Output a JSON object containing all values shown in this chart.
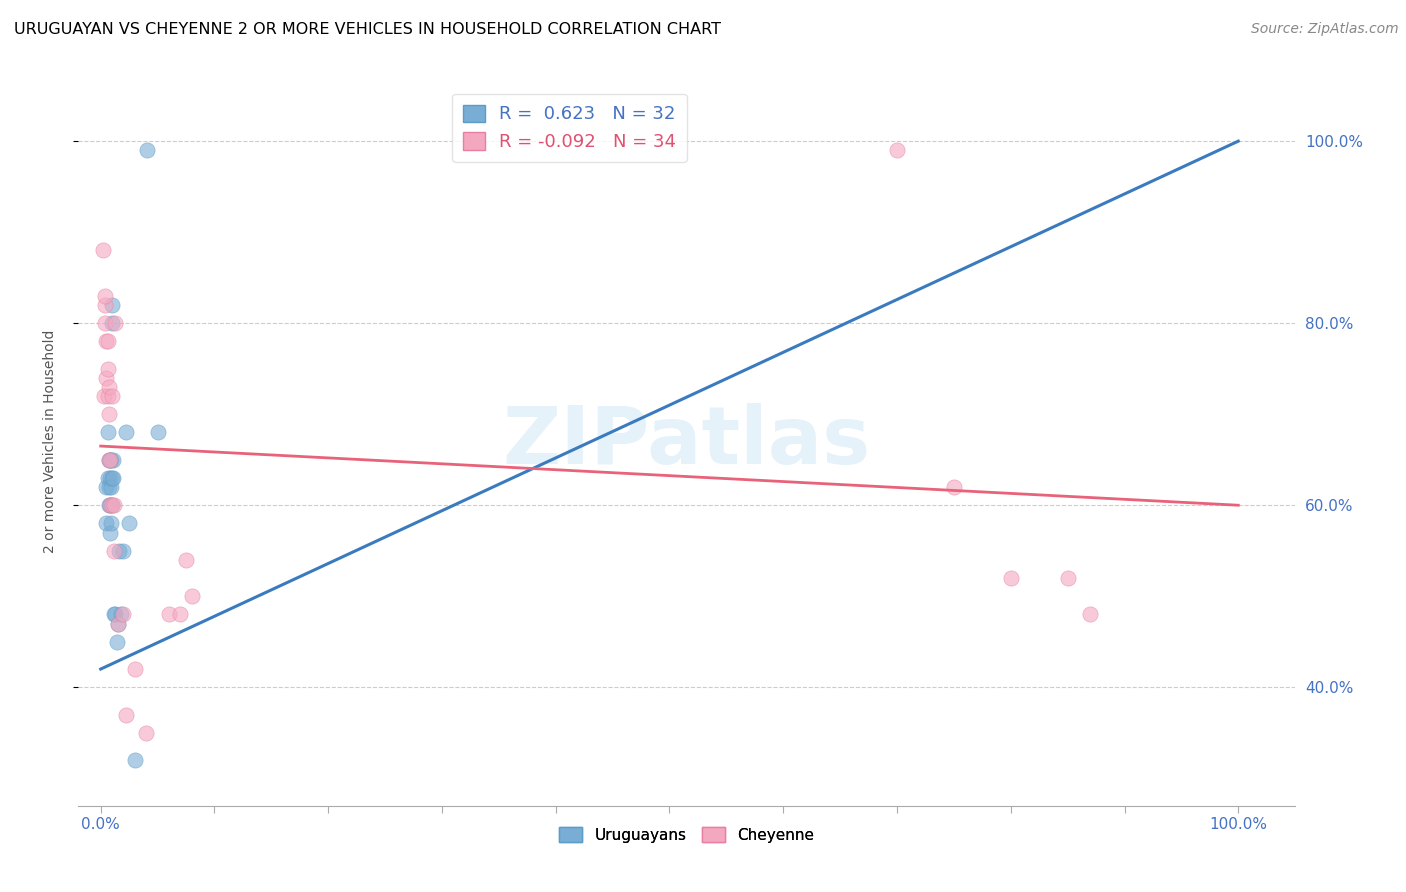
{
  "title": "URUGUAYAN VS CHEYENNE 2 OR MORE VEHICLES IN HOUSEHOLD CORRELATION CHART",
  "source": "Source: ZipAtlas.com",
  "ylabel": "2 or more Vehicles in Household",
  "legend_blue_label": "R =  0.623   N = 32",
  "legend_pink_label": "R = -0.092   N = 34",
  "watermark": "ZIPatlas",
  "blue_color": "#7aadd4",
  "blue_edge_color": "#5b9dc9",
  "pink_color": "#f4a8c0",
  "pink_edge_color": "#e87fa0",
  "blue_line_color": "#3a7bbf",
  "pink_line_color": "#e8637a",
  "uruguayan_points": [
    [
      0.5,
      58
    ],
    [
      0.5,
      62
    ],
    [
      0.6,
      63
    ],
    [
      0.6,
      68
    ],
    [
      0.7,
      60
    ],
    [
      0.7,
      62
    ],
    [
      0.7,
      65
    ],
    [
      0.8,
      57
    ],
    [
      0.8,
      60
    ],
    [
      0.8,
      63
    ],
    [
      0.8,
      65
    ],
    [
      0.9,
      58
    ],
    [
      0.9,
      62
    ],
    [
      0.9,
      65
    ],
    [
      1.0,
      60
    ],
    [
      1.0,
      63
    ],
    [
      1.0,
      80
    ],
    [
      1.0,
      82
    ],
    [
      1.1,
      63
    ],
    [
      1.1,
      65
    ],
    [
      1.2,
      48
    ],
    [
      1.3,
      48
    ],
    [
      1.4,
      45
    ],
    [
      1.5,
      47
    ],
    [
      1.6,
      55
    ],
    [
      1.8,
      48
    ],
    [
      2.0,
      55
    ],
    [
      2.2,
      68
    ],
    [
      2.5,
      58
    ],
    [
      3.0,
      32
    ],
    [
      4.1,
      99
    ],
    [
      5.0,
      68
    ]
  ],
  "cheyenne_points": [
    [
      0.2,
      88
    ],
    [
      0.3,
      72
    ],
    [
      0.4,
      80
    ],
    [
      0.4,
      82
    ],
    [
      0.4,
      83
    ],
    [
      0.5,
      74
    ],
    [
      0.5,
      78
    ],
    [
      0.6,
      72
    ],
    [
      0.6,
      75
    ],
    [
      0.6,
      78
    ],
    [
      0.7,
      65
    ],
    [
      0.7,
      70
    ],
    [
      0.7,
      73
    ],
    [
      0.8,
      60
    ],
    [
      0.8,
      65
    ],
    [
      1.0,
      60
    ],
    [
      1.0,
      72
    ],
    [
      1.2,
      55
    ],
    [
      1.2,
      60
    ],
    [
      1.3,
      80
    ],
    [
      1.5,
      47
    ],
    [
      2.0,
      48
    ],
    [
      2.2,
      37
    ],
    [
      3.0,
      42
    ],
    [
      4.0,
      35
    ],
    [
      6.0,
      48
    ],
    [
      7.0,
      48
    ],
    [
      7.5,
      54
    ],
    [
      8.0,
      50
    ],
    [
      70.0,
      99
    ],
    [
      75.0,
      62
    ],
    [
      80.0,
      52
    ],
    [
      85.0,
      52
    ],
    [
      87.0,
      48
    ]
  ],
  "blue_line_x": [
    0.0,
    100.0
  ],
  "blue_line_y": [
    42.0,
    100.0
  ],
  "pink_line_x": [
    0.0,
    100.0
  ],
  "pink_line_y": [
    66.5,
    60.0
  ],
  "xlim": [
    -2.0,
    105.0
  ],
  "ylim": [
    27.0,
    107.0
  ],
  "xtick_positions": [
    0,
    10,
    20,
    30,
    40,
    50,
    60,
    70,
    80,
    90,
    100
  ],
  "yticks": [
    40,
    60,
    80,
    100
  ],
  "title_fontsize": 11.5,
  "source_fontsize": 10,
  "legend_fontsize": 13,
  "axis_label_fontsize": 11,
  "scatter_size": 120,
  "scatter_alpha": 0.6
}
